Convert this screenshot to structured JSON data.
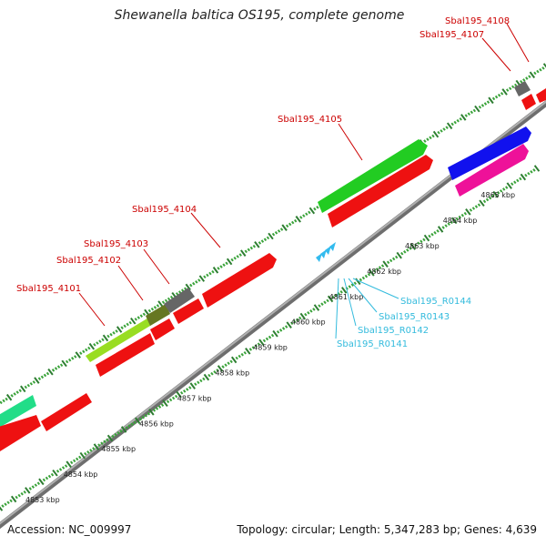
{
  "title": "Shewanella baltica OS195, complete genome",
  "footer": {
    "accession": "Accession: NC_009997",
    "summary": "Topology: circular; Length: 5,347,283 bp; Genes: 4,639"
  },
  "colors": {
    "backbone": "#8a8a8a",
    "tick_major": "#2e7d32",
    "tick_minor": "#3aa33a",
    "gene_label": "#cc0000",
    "rna_label": "#33bbdd"
  },
  "ticks": [
    {
      "label": "4853 kbp"
    },
    {
      "label": "4854 kbp"
    },
    {
      "label": "4855 kbp"
    },
    {
      "label": "4856 kbp"
    },
    {
      "label": "4857 kbp"
    },
    {
      "label": "4858 kbp"
    },
    {
      "label": "4859 kbp"
    },
    {
      "label": "4860 kbp"
    },
    {
      "label": "4861 kbp"
    },
    {
      "label": "4862 kbp"
    },
    {
      "label": "4863 kbp"
    },
    {
      "label": "4864 kbp"
    },
    {
      "label": "4865 kbp"
    }
  ],
  "gene_labels": [
    "Sbal195_4101",
    "Sbal195_4102",
    "Sbal195_4103",
    "Sbal195_4104",
    "Sbal195_4105",
    "Sbal195_4107",
    "Sbal195_4108"
  ],
  "rna_labels": [
    "Sbal195_R0141",
    "Sbal195_R0142",
    "Sbal195_R0143",
    "Sbal195_R0144"
  ]
}
